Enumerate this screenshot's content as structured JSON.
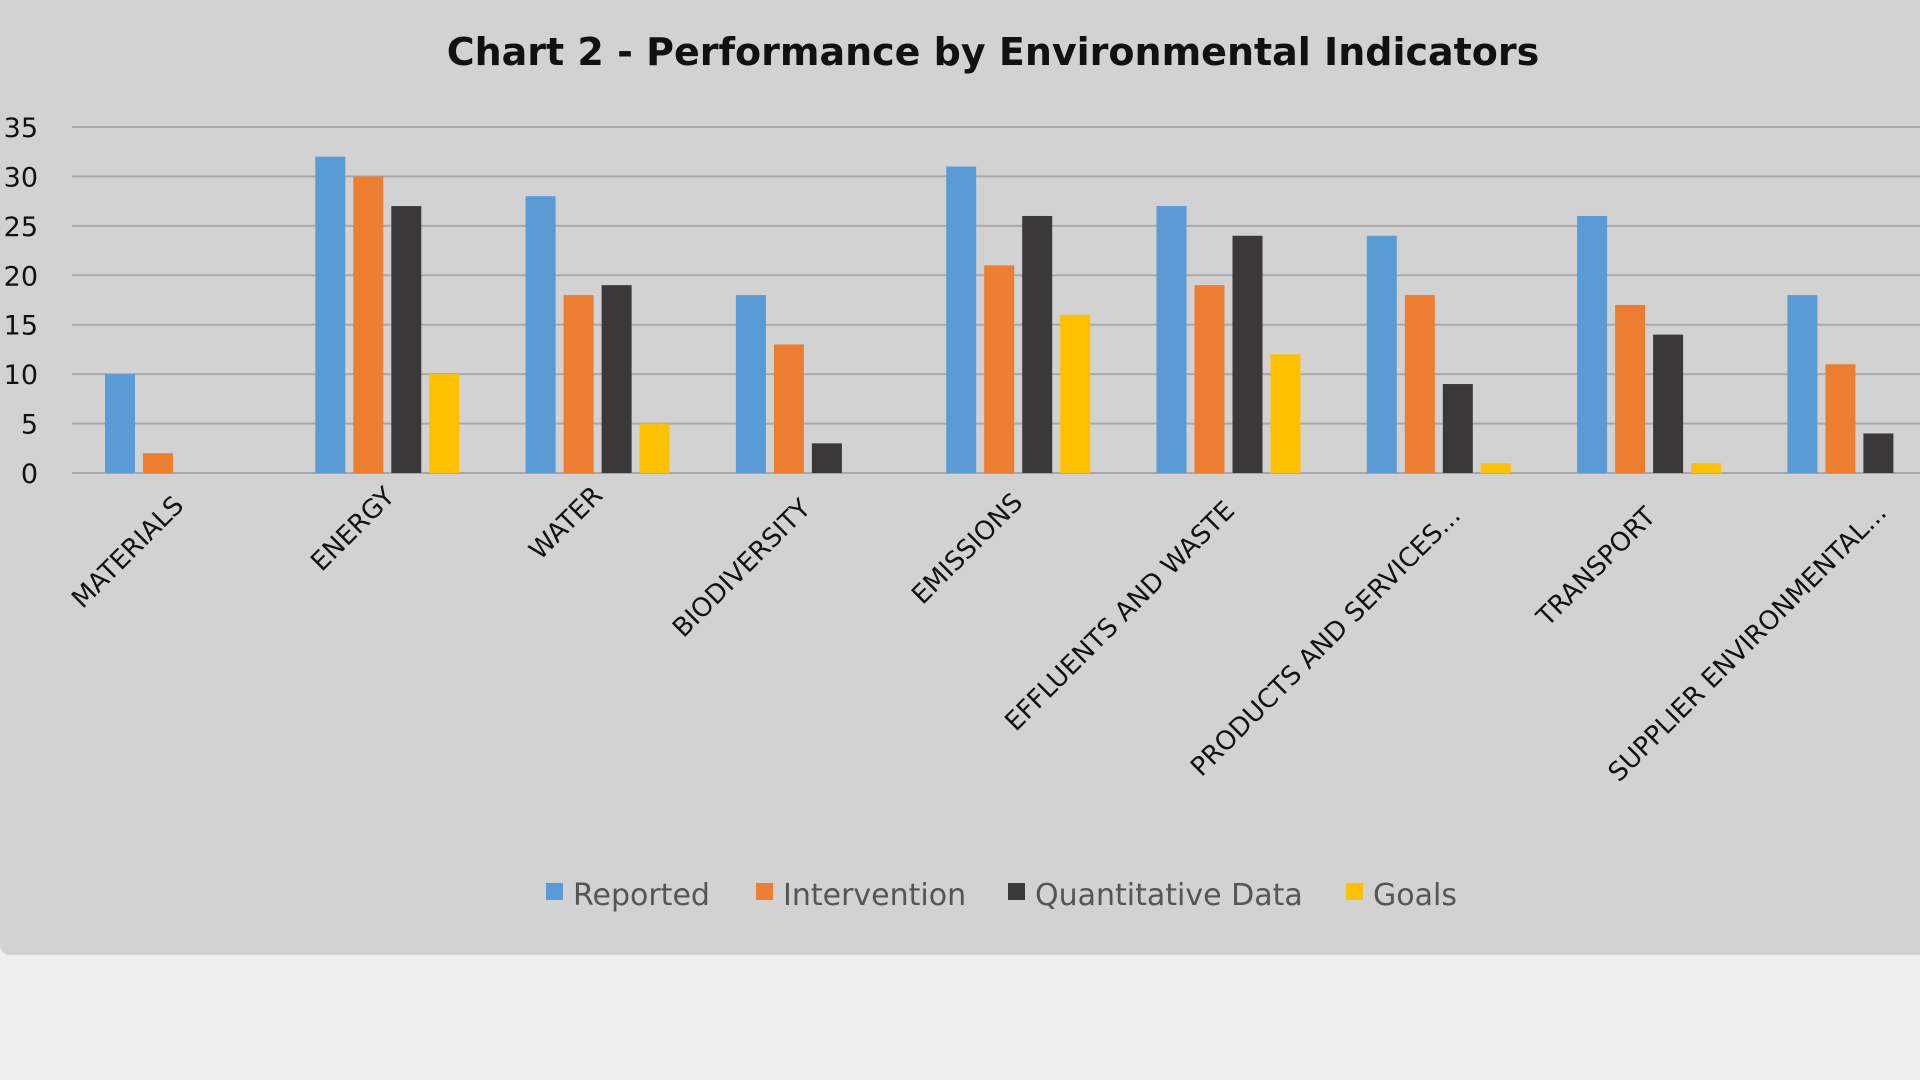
{
  "chart_data": {
    "type": "bar",
    "title": "Chart 2 - Performance by Environmental Indicators",
    "xlabel": "",
    "ylabel": "",
    "ylim": [
      0,
      35
    ],
    "yticks": [
      0,
      5,
      10,
      15,
      20,
      25,
      30,
      35
    ],
    "grid": true,
    "legend_position": "bottom",
    "categories": [
      "MATERIALS",
      "ENERGY",
      "WATER",
      "BIODIVERSITY",
      "EMISSIONS",
      "EFFLUENTS AND WASTE",
      "PRODUCTS AND SERVICES...",
      "TRANSPORT",
      "SUPPLIER ENVIRONMENTAL..."
    ],
    "series": [
      {
        "name": "Reported",
        "color": "#5b9bd5",
        "values": [
          10,
          32,
          28,
          18,
          31,
          27,
          24,
          26,
          18
        ]
      },
      {
        "name": "Intervention",
        "color": "#ed7d31",
        "values": [
          2,
          30,
          18,
          13,
          21,
          19,
          18,
          17,
          11
        ]
      },
      {
        "name": "Quantitative Data",
        "color": "#3a3838",
        "values": [
          0,
          27,
          19,
          3,
          26,
          24,
          9,
          14,
          4
        ]
      },
      {
        "name": "Goals",
        "color": "#ffc000",
        "values": [
          0,
          10,
          5,
          0,
          16,
          12,
          1,
          1,
          0
        ]
      }
    ]
  },
  "colors": {
    "panel_background": "#d3d2d3",
    "page_background": "#f0eff0",
    "gridline": "#a9a8a9"
  }
}
